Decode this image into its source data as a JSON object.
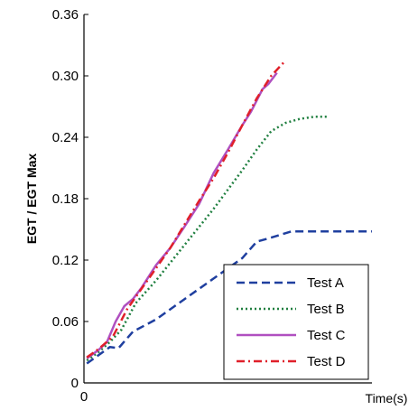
{
  "chart_data": {
    "type": "line",
    "title": "",
    "xlabel": "Time(s)",
    "ylabel": "EGT / EGT Max",
    "ylim": [
      0,
      0.36
    ],
    "xlim": [
      0,
      100
    ],
    "yticks": [
      "0",
      "0.06",
      "0.12",
      "0.18",
      "0.24",
      "0.30",
      "0.36"
    ],
    "xticks": [
      "0"
    ],
    "grid": false,
    "legend_position": "bottom-right",
    "series": [
      {
        "name": "Test A",
        "color": "#1f3f9f",
        "dash": "dashed",
        "x": [
          1,
          5,
          9,
          12,
          17,
          25,
          35,
          45,
          55,
          60,
          65,
          72,
          80,
          90,
          100
        ],
        "y": [
          0.019,
          0.027,
          0.035,
          0.034,
          0.05,
          0.062,
          0.082,
          0.102,
          0.122,
          0.138,
          0.142,
          0.148,
          0.148,
          0.148,
          0.148
        ]
      },
      {
        "name": "Test B",
        "color": "#1f7f3f",
        "dash": "dotted",
        "x": [
          1,
          5,
          9,
          13,
          18,
          25,
          35,
          45,
          55,
          60,
          65,
          70,
          75,
          80,
          85
        ],
        "y": [
          0.022,
          0.03,
          0.04,
          0.052,
          0.078,
          0.1,
          0.135,
          0.17,
          0.208,
          0.228,
          0.246,
          0.254,
          0.258,
          0.26,
          0.26
        ]
      },
      {
        "name": "Test C",
        "color": "#b050c0",
        "dash": "solid",
        "x": [
          1,
          5,
          8,
          11,
          14,
          17,
          20,
          25,
          30,
          35,
          40,
          45,
          50,
          55,
          58,
          62,
          64,
          67
        ],
        "y": [
          0.024,
          0.032,
          0.04,
          0.06,
          0.075,
          0.082,
          0.093,
          0.115,
          0.132,
          0.153,
          0.175,
          0.205,
          0.228,
          0.252,
          0.265,
          0.287,
          0.292,
          0.303
        ]
      },
      {
        "name": "Test D",
        "color": "#e0202a",
        "dash": "dashdot",
        "x": [
          1,
          5,
          10,
          15,
          20,
          25,
          30,
          35,
          40,
          45,
          50,
          55,
          60,
          65,
          70
        ],
        "y": [
          0.025,
          0.033,
          0.045,
          0.072,
          0.092,
          0.112,
          0.132,
          0.155,
          0.178,
          0.2,
          0.225,
          0.252,
          0.278,
          0.3,
          0.315
        ]
      }
    ]
  }
}
